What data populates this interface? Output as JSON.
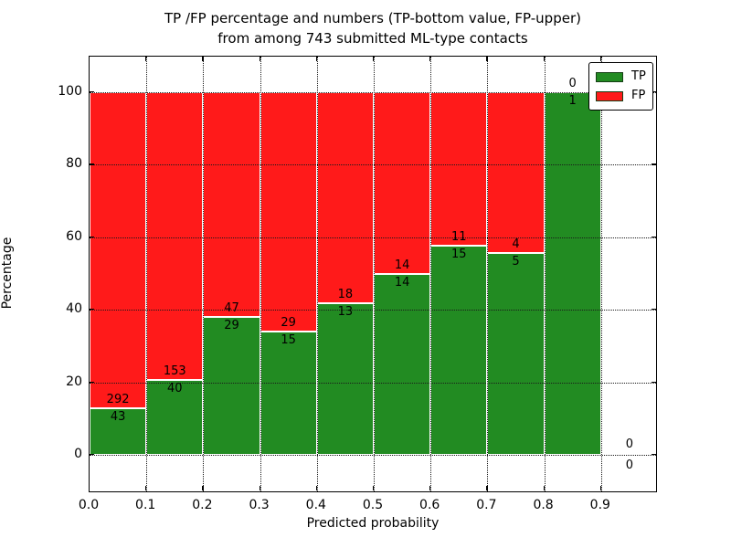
{
  "title": {
    "line1": "TP /FP percentage and numbers (TP-bottom value, FP-upper)",
    "line2": "from among 743 submitted ML-type contacts"
  },
  "axes": {
    "xlabel": "Predicted probability",
    "ylabel": "Percentage",
    "xtick_labels": [
      "0.0",
      "0.1",
      "0.2",
      "0.3",
      "0.4",
      "0.5",
      "0.6",
      "0.7",
      "0.8",
      "0.9"
    ],
    "ytick_labels": [
      "0",
      "20",
      "40",
      "60",
      "80",
      "100"
    ],
    "ytick_values": [
      0,
      20,
      40,
      60,
      80,
      100
    ],
    "xlim": [
      0.0,
      1.0
    ],
    "grid": "dotted"
  },
  "legend": {
    "position": "upper-right",
    "items": [
      {
        "label": "TP",
        "color": "#228b22"
      },
      {
        "label": "FP",
        "color": "#ff1a1a"
      }
    ]
  },
  "colors": {
    "tp": "#228b22",
    "fp": "#ff1a1a",
    "bar_edge": "#ffffff",
    "text": "#000000",
    "background": "#ffffff"
  },
  "chart_data": {
    "type": "bar",
    "stacked": true,
    "normalized_to": "percent",
    "title": "TP /FP percentage and numbers (TP-bottom value, FP-upper) from among 743 submitted ML-type contacts",
    "xlabel": "Predicted probability",
    "ylabel": "Percentage",
    "total_contacts": 743,
    "bin_width": 0.1,
    "categories": [
      "0.0-0.1",
      "0.1-0.2",
      "0.2-0.3",
      "0.3-0.4",
      "0.4-0.5",
      "0.5-0.6",
      "0.6-0.7",
      "0.7-0.8",
      "0.8-0.9",
      "0.9-1.0"
    ],
    "series": [
      {
        "name": "TP",
        "color": "#228b22",
        "values": [
          43,
          40,
          29,
          15,
          13,
          14,
          15,
          5,
          1,
          0
        ]
      },
      {
        "name": "FP",
        "color": "#ff1a1a",
        "values": [
          292,
          153,
          47,
          29,
          18,
          14,
          11,
          4,
          0,
          0
        ]
      }
    ],
    "tp_percent": [
      12.84,
      20.73,
      38.16,
      34.09,
      41.94,
      50.0,
      57.69,
      55.56,
      100.0,
      null
    ],
    "fp_percent": [
      87.16,
      79.27,
      61.84,
      65.91,
      58.06,
      50.0,
      42.31,
      44.44,
      0.0,
      null
    ],
    "ylim": [
      -10,
      110
    ],
    "annotation_rule": "TP count printed just below the TP/FP boundary, FP count just above it"
  }
}
